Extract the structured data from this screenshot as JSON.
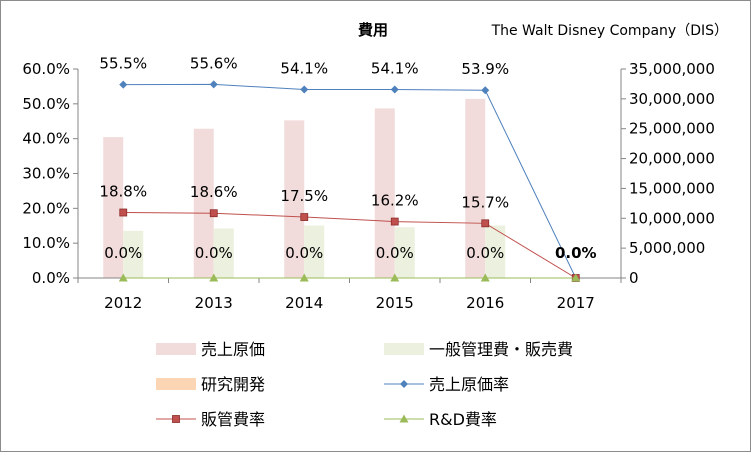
{
  "chart_data": {
    "type": "bar+line",
    "title": "費用",
    "subtitle": "The Walt Disney Company（DIS）",
    "categories": [
      "2012",
      "2013",
      "2014",
      "2015",
      "2016",
      "2017"
    ],
    "left_axis": {
      "ylim": [
        0,
        60
      ],
      "ticks": [
        "0.0%",
        "10.0%",
        "20.0%",
        "30.0%",
        "40.0%",
        "50.0%",
        "60.0%"
      ]
    },
    "right_axis": {
      "ylim": [
        0,
        35000000
      ],
      "ticks": [
        "0",
        "5,000,000",
        "10,000,000",
        "15,000,000",
        "20,000,000",
        "25,000,000",
        "30,000,000",
        "35,000,000"
      ]
    },
    "bar_series": [
      {
        "name": "売上原価",
        "color": "#f2dcdb",
        "axis": "right",
        "values": [
          23600000,
          25000000,
          26400000,
          28400000,
          30000000,
          0
        ]
      },
      {
        "name": "一般管理費・販売費",
        "color": "#ebf1de",
        "axis": "right",
        "values": [
          7900000,
          8300000,
          8800000,
          8500000,
          8800000,
          0
        ]
      },
      {
        "name": "研究開発",
        "color": "#fcd5b5",
        "axis": "right",
        "values": [
          0,
          0,
          0,
          0,
          0,
          0
        ]
      }
    ],
    "line_series": [
      {
        "name": "売上原価率",
        "color": "#4f81bd",
        "marker": "diamond",
        "axis": "left",
        "values": [
          55.5,
          55.6,
          54.1,
          54.1,
          53.9,
          0.0
        ],
        "labels": [
          "55.5%",
          "55.6%",
          "54.1%",
          "54.1%",
          "53.9%",
          ""
        ]
      },
      {
        "name": "販管費率",
        "color": "#c0504d",
        "marker": "square",
        "axis": "left",
        "values": [
          18.8,
          18.6,
          17.5,
          16.2,
          15.7,
          0.0
        ],
        "labels": [
          "18.8%",
          "18.6%",
          "17.5%",
          "16.2%",
          "15.7%",
          ""
        ]
      },
      {
        "name": "R&D費率",
        "color": "#9bbb59",
        "marker": "triangle",
        "axis": "left",
        "values": [
          0.0,
          0.0,
          0.0,
          0.0,
          0.0,
          0.0
        ],
        "labels": [
          "0.0%",
          "0.0%",
          "0.0%",
          "0.0%",
          "0.0%",
          "0.0%"
        ]
      }
    ],
    "legend_position": "bottom",
    "gridlines": false
  }
}
